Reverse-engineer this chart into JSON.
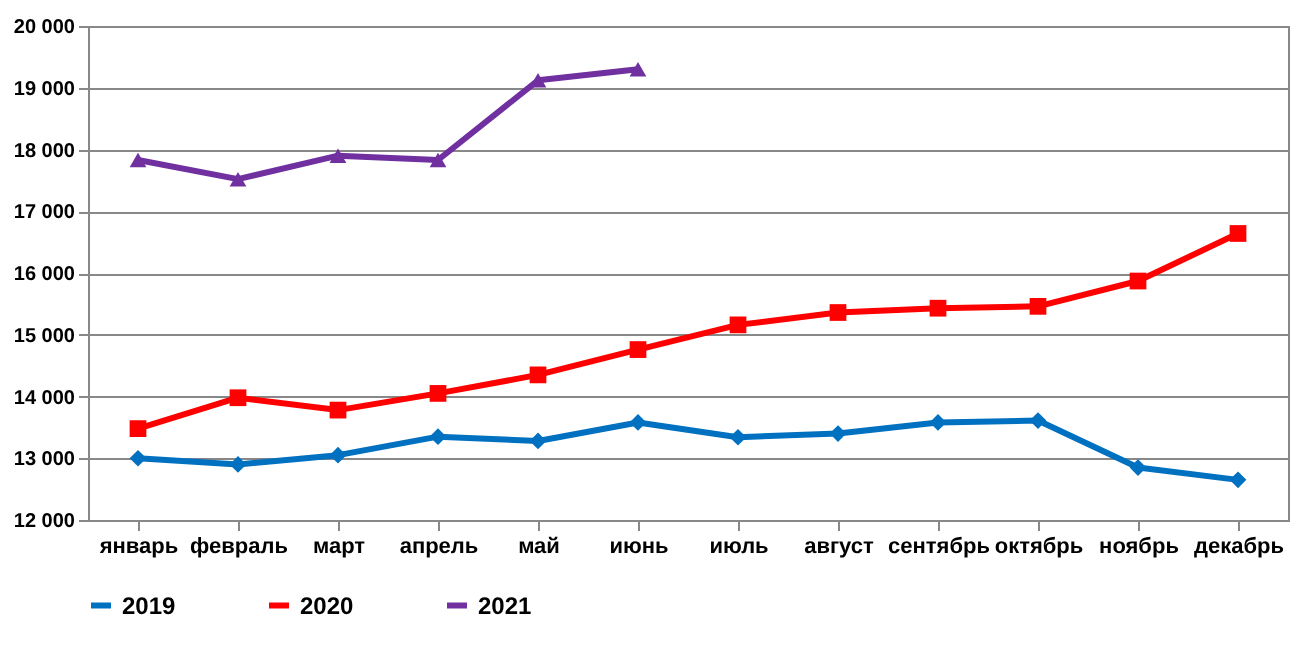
{
  "chart_data": {
    "type": "line",
    "categories": [
      "январь",
      "февраль",
      "март",
      "апрель",
      "май",
      "июнь",
      "июль",
      "август",
      "сентябрь",
      "октябрь",
      "ноябрь",
      "декабрь"
    ],
    "series": [
      {
        "name": "2019",
        "color": "#0070c0",
        "marker": "diamond",
        "values": [
          13000,
          12900,
          13050,
          13350,
          13280,
          13580,
          13340,
          13400,
          13580,
          13610,
          12850,
          12650
        ]
      },
      {
        "name": "2020",
        "color": "#ff0000",
        "marker": "square",
        "values": [
          13480,
          13980,
          13780,
          14050,
          14350,
          14760,
          15160,
          15360,
          15430,
          15460,
          15870,
          16640
        ]
      },
      {
        "name": "2021",
        "color": "#7030a0",
        "marker": "triangle",
        "values": [
          17830,
          17520,
          17900,
          17830,
          19120,
          19300,
          null,
          null,
          null,
          null,
          null,
          null
        ]
      }
    ],
    "ylim": [
      12000,
      20000
    ],
    "yticks": [
      {
        "value": 12000,
        "label": "12 000"
      },
      {
        "value": 13000,
        "label": "13 000"
      },
      {
        "value": 14000,
        "label": "14 000"
      },
      {
        "value": 15000,
        "label": "15 000"
      },
      {
        "value": 16000,
        "label": "16 000"
      },
      {
        "value": 17000,
        "label": "17 000"
      },
      {
        "value": 18000,
        "label": "18 000"
      },
      {
        "value": 19000,
        "label": "19 000"
      },
      {
        "value": 20000,
        "label": "20 000"
      }
    ],
    "grid": "y",
    "legend": "bottom"
  }
}
